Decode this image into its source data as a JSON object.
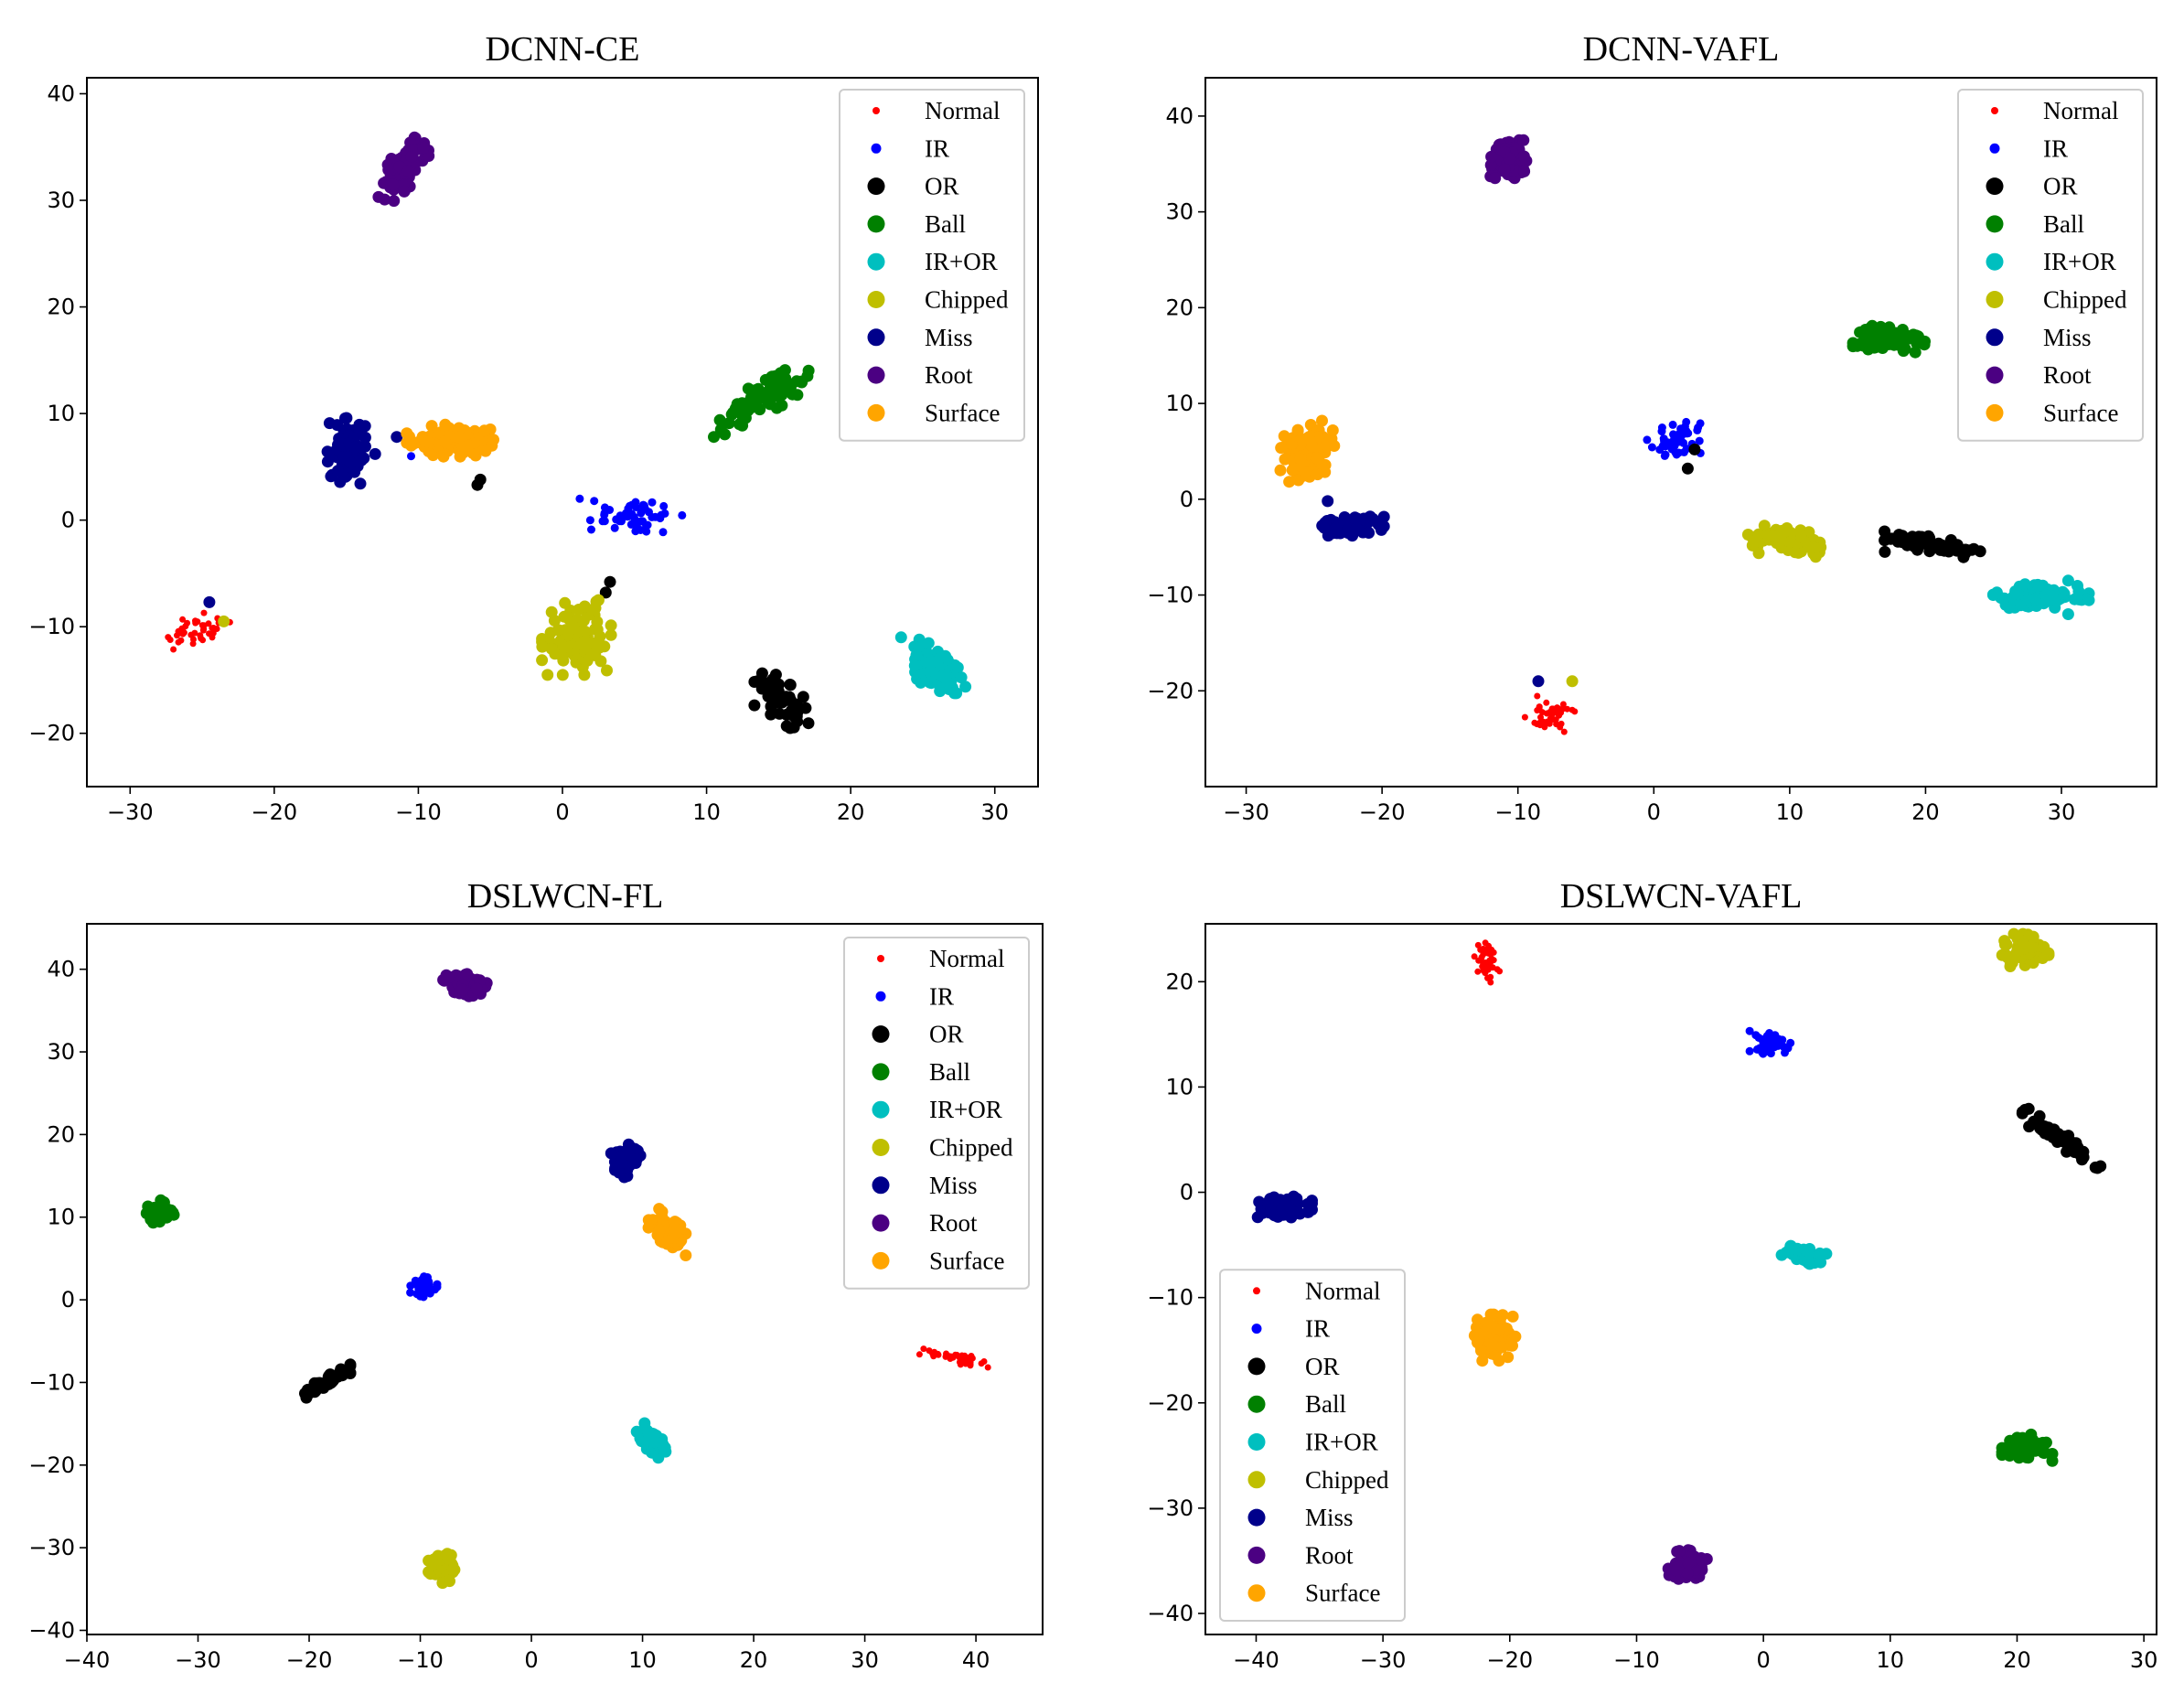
{
  "chart_data": [
    {
      "type": "scatter",
      "title": "DCNN-CE",
      "xlabel": "",
      "ylabel": "",
      "xlim": [
        -33,
        33
      ],
      "ylim": [
        -25,
        41.5
      ],
      "xticks": [
        -30,
        -20,
        -10,
        0,
        10,
        20,
        30
      ],
      "yticks": [
        -20,
        -10,
        0,
        10,
        20,
        30,
        40
      ],
      "grid": false,
      "legend_position": "top-right",
      "series": [
        {
          "name": "Normal",
          "clusters": [
            {
              "x": -25.5,
              "y": -10.5,
              "sx": 1.3,
              "sy": 0.8,
              "n": 40,
              "rho": 0.3
            }
          ],
          "points": [
            [
              -24.5,
              -7.7
            ]
          ]
        },
        {
          "name": "IR",
          "clusters": [
            {
              "x": 5.0,
              "y": 0.5,
              "sx": 1.5,
              "sy": 0.7,
              "n": 55,
              "rho": -0.1
            }
          ],
          "points": [
            [
              1.2,
              2.0
            ],
            [
              2.2,
              1.8
            ],
            [
              10.5,
              7.8
            ],
            [
              -10.5,
              6.0
            ]
          ]
        },
        {
          "name": "OR",
          "clusters": [
            {
              "x": 15.3,
              "y": -17.0,
              "sx": 0.9,
              "sy": 1.2,
              "n": 55,
              "rho": -0.6
            }
          ],
          "points": [
            [
              3.3,
              -5.8
            ],
            [
              3.0,
              -6.8
            ],
            [
              -5.9,
              3.3
            ],
            [
              -5.7,
              3.8
            ]
          ]
        },
        {
          "name": "Ball",
          "clusters": [
            {
              "x": 14.0,
              "y": 11.5,
              "sx": 1.4,
              "sy": 1.2,
              "n": 85,
              "rho": 0.8
            }
          ],
          "points": [
            [
              11.0,
              8.5
            ],
            [
              10.5,
              7.8
            ]
          ]
        },
        {
          "name": "IR+OR",
          "clusters": [
            {
              "x": 26.0,
              "y": -14.0,
              "sx": 0.9,
              "sy": 1.1,
              "n": 85,
              "rho": -0.5
            }
          ],
          "points": [
            [
              23.5,
              -11.0
            ]
          ]
        },
        {
          "name": "Chipped",
          "clusters": [
            {
              "x": 1.0,
              "y": -11.0,
              "sx": 1.1,
              "sy": 1.6,
              "n": 95,
              "rho": 0.0
            }
          ],
          "points": [
            [
              -23.5,
              -9.5
            ],
            [
              2.5,
              -7.5
            ]
          ]
        },
        {
          "name": "Miss",
          "clusters": [
            {
              "x": -15.0,
              "y": 6.5,
              "sx": 0.6,
              "sy": 1.4,
              "n": 85,
              "rho": 0.0
            }
          ],
          "points": [
            [
              -24.5,
              -7.7
            ],
            [
              -13.0,
              6.2
            ],
            [
              -11.5,
              7.8
            ]
          ]
        },
        {
          "name": "Root",
          "clusters": [
            {
              "x": -11.0,
              "y": 33.0,
              "sx": 0.8,
              "sy": 1.4,
              "n": 110,
              "rho": 0.7
            }
          ],
          "points": []
        },
        {
          "name": "Surface",
          "clusters": [
            {
              "x": -7.5,
              "y": 7.5,
              "sx": 1.5,
              "sy": 0.7,
              "n": 110,
              "rho": 0.0
            }
          ],
          "points": [
            [
              -10.5,
              7.0
            ]
          ]
        }
      ]
    },
    {
      "type": "scatter",
      "title": "DCNN-VAFL",
      "xlabel": "",
      "ylabel": "",
      "xlim": [
        -33,
        37
      ],
      "ylim": [
        -30,
        44
      ],
      "xticks": [
        -30,
        -20,
        -10,
        0,
        10,
        20,
        30
      ],
      "yticks": [
        -20,
        -10,
        0,
        10,
        20,
        30,
        40
      ],
      "grid": false,
      "legend_position": "top-right",
      "series": [
        {
          "name": "Normal",
          "clusters": [
            {
              "x": -7.5,
              "y": -22.5,
              "sx": 0.9,
              "sy": 1.0,
              "n": 45,
              "rho": 0.0
            }
          ],
          "points": [
            [
              -8.5,
              -19.0
            ]
          ]
        },
        {
          "name": "IR",
          "clusters": [
            {
              "x": 1.8,
              "y": 6.0,
              "sx": 0.9,
              "sy": 0.9,
              "n": 45,
              "rho": 0.3
            }
          ],
          "points": [
            [
              3.2,
              7.2
            ],
            [
              -0.5,
              6.2
            ]
          ]
        },
        {
          "name": "OR",
          "clusters": [
            {
              "x": 20.5,
              "y": -4.8,
              "sx": 1.6,
              "sy": 0.6,
              "n": 65,
              "rho": -0.7
            }
          ],
          "points": [
            [
              2.5,
              3.2
            ],
            [
              3.0,
              5.2
            ],
            [
              17.0,
              -5.5
            ]
          ]
        },
        {
          "name": "Ball",
          "clusters": [
            {
              "x": 17.3,
              "y": 16.8,
              "sx": 1.2,
              "sy": 0.7,
              "n": 80,
              "rho": 0.0
            }
          ],
          "points": []
        },
        {
          "name": "IR+OR",
          "clusters": [
            {
              "x": 28.5,
              "y": -10.2,
              "sx": 1.6,
              "sy": 0.6,
              "n": 80,
              "rho": 0.0
            }
          ],
          "points": [
            [
              30.5,
              -8.5
            ],
            [
              30.5,
              -12.0
            ]
          ]
        },
        {
          "name": "Chipped",
          "clusters": [
            {
              "x": 9.8,
              "y": -4.5,
              "sx": 1.3,
              "sy": 0.7,
              "n": 90,
              "rho": -0.3
            }
          ],
          "points": [
            [
              -6.0,
              -19.0
            ]
          ]
        },
        {
          "name": "Miss",
          "clusters": [
            {
              "x": -22.5,
              "y": -2.8,
              "sx": 1.2,
              "sy": 0.5,
              "n": 85,
              "rho": 0.0
            }
          ],
          "points": [
            [
              -24.0,
              -0.2
            ],
            [
              -8.5,
              -19.0
            ]
          ]
        },
        {
          "name": "Root",
          "clusters": [
            {
              "x": -10.7,
              "y": 35.5,
              "sx": 0.6,
              "sy": 0.9,
              "n": 100,
              "rho": 0.0
            }
          ],
          "points": []
        },
        {
          "name": "Surface",
          "clusters": [
            {
              "x": -25.5,
              "y": 5.0,
              "sx": 0.9,
              "sy": 1.3,
              "n": 110,
              "rho": 0.3
            }
          ],
          "points": []
        }
      ]
    },
    {
      "type": "scatter",
      "title": "DSLWCN-FL",
      "xlabel": "",
      "ylabel": "",
      "xlim": [
        -40,
        46
      ],
      "ylim": [
        -40.5,
        45.5
      ],
      "xticks": [
        -40,
        -30,
        -20,
        -10,
        0,
        10,
        20,
        30,
        40
      ],
      "yticks": [
        -40,
        -30,
        -20,
        -10,
        0,
        10,
        20,
        30,
        40
      ],
      "grid": false,
      "legend_position": "top-right",
      "series": [
        {
          "name": "Normal",
          "clusters": [
            {
              "x": 38.0,
              "y": -7.0,
              "sx": 1.4,
              "sy": 0.5,
              "n": 45,
              "rho": -0.8
            }
          ],
          "points": []
        },
        {
          "name": "IR",
          "clusters": [
            {
              "x": -9.8,
              "y": 1.5,
              "sx": 0.6,
              "sy": 0.6,
              "n": 40,
              "rho": 0.0
            }
          ],
          "points": []
        },
        {
          "name": "OR",
          "clusters": [
            {
              "x": -18.5,
              "y": -10.0,
              "sx": 1.0,
              "sy": 0.8,
              "n": 55,
              "rho": 0.9
            }
          ],
          "points": []
        },
        {
          "name": "Ball",
          "clusters": [
            {
              "x": -33.5,
              "y": 10.5,
              "sx": 0.6,
              "sy": 0.7,
              "n": 60,
              "rho": 0.0
            }
          ],
          "points": []
        },
        {
          "name": "IR+OR",
          "clusters": [
            {
              "x": 10.8,
              "y": -17.0,
              "sx": 0.6,
              "sy": 0.9,
              "n": 65,
              "rho": -0.6
            }
          ],
          "points": []
        },
        {
          "name": "Chipped",
          "clusters": [
            {
              "x": -8.0,
              "y": -32.5,
              "sx": 0.6,
              "sy": 0.8,
              "n": 80,
              "rho": 0.0
            }
          ],
          "points": []
        },
        {
          "name": "Miss",
          "clusters": [
            {
              "x": 8.5,
              "y": 16.8,
              "sx": 0.6,
              "sy": 0.9,
              "n": 80,
              "rho": 0.3
            }
          ],
          "points": []
        },
        {
          "name": "Root",
          "clusters": [
            {
              "x": -6.0,
              "y": 38.2,
              "sx": 0.9,
              "sy": 0.7,
              "n": 90,
              "rho": -0.5
            }
          ],
          "points": []
        },
        {
          "name": "Surface",
          "clusters": [
            {
              "x": 12.3,
              "y": 8.5,
              "sx": 0.8,
              "sy": 1.1,
              "n": 90,
              "rho": -0.6
            }
          ],
          "points": []
        }
      ]
    },
    {
      "type": "scatter",
      "title": "DSLWCN-VAFL",
      "xlabel": "",
      "ylabel": "",
      "xlim": [
        -44,
        31
      ],
      "ylim": [
        -42,
        25.5
      ],
      "xticks": [
        -40,
        -30,
        -20,
        -10,
        0,
        10,
        20,
        30
      ],
      "yticks": [
        -40,
        -30,
        -20,
        -10,
        0,
        10,
        20
      ],
      "grid": false,
      "legend_position": "lower-left",
      "series": [
        {
          "name": "Normal",
          "clusters": [
            {
              "x": -21.8,
              "y": 21.8,
              "sx": 0.45,
              "sy": 0.9,
              "n": 40,
              "rho": 0.0
            }
          ],
          "points": []
        },
        {
          "name": "IR",
          "clusters": [
            {
              "x": 0.5,
              "y": 14.0,
              "sx": 0.8,
              "sy": 0.6,
              "n": 45,
              "rho": 0.0
            }
          ],
          "points": []
        },
        {
          "name": "OR",
          "clusters": [
            {
              "x": 23.5,
              "y": 5.0,
              "sx": 1.4,
              "sy": 1.2,
              "n": 60,
              "rho": -0.95
            }
          ],
          "points": []
        },
        {
          "name": "Ball",
          "clusters": [
            {
              "x": 20.8,
              "y": -24.2,
              "sx": 0.9,
              "sy": 0.6,
              "n": 70,
              "rho": 0.0
            }
          ],
          "points": []
        },
        {
          "name": "IR+OR",
          "clusters": [
            {
              "x": 3.2,
              "y": -5.9,
              "sx": 0.8,
              "sy": 0.4,
              "n": 55,
              "rho": -0.3
            }
          ],
          "points": []
        },
        {
          "name": "Chipped",
          "clusters": [
            {
              "x": 20.5,
              "y": 23.0,
              "sx": 0.9,
              "sy": 0.7,
              "n": 75,
              "rho": 0.0
            }
          ],
          "points": []
        },
        {
          "name": "Miss",
          "clusters": [
            {
              "x": -37.8,
              "y": -1.5,
              "sx": 1.0,
              "sy": 0.5,
              "n": 80,
              "rho": 0.0
            }
          ],
          "points": []
        },
        {
          "name": "Root",
          "clusters": [
            {
              "x": -6.0,
              "y": -35.5,
              "sx": 0.7,
              "sy": 0.7,
              "n": 70,
              "rho": 0.0
            }
          ],
          "points": []
        },
        {
          "name": "Surface",
          "clusters": [
            {
              "x": -21.2,
              "y": -13.8,
              "sx": 0.8,
              "sy": 1.0,
              "n": 85,
              "rho": 0.0
            }
          ],
          "points": []
        }
      ]
    }
  ],
  "colors": {
    "Normal": "#ff0000",
    "IR": "#0000ff",
    "OR": "#000000",
    "Ball": "#008000",
    "IR+OR": "#00bfbf",
    "Chipped": "#bfbf00",
    "Miss": "#00008b",
    "Root": "#4b0082",
    "Surface": "#ffa500"
  }
}
